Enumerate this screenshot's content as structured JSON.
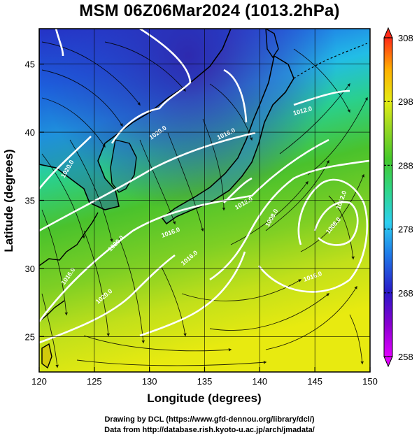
{
  "title": "MSM 06Z06Mar2024 (1013.2hPa)",
  "x_axis": {
    "label": "Longitude (degrees)",
    "range": [
      120,
      150
    ],
    "ticks": [
      "120",
      "125",
      "130",
      "135",
      "140",
      "145",
      "150"
    ]
  },
  "y_axis": {
    "label": "Latitude (degrees)",
    "range": [
      22.4,
      47.6
    ],
    "ticks": [
      "25",
      "30",
      "35",
      "40",
      "45"
    ]
  },
  "colorbar": {
    "range": [
      258,
      308
    ],
    "ticks": [
      "258",
      "268",
      "278",
      "288",
      "298",
      "308"
    ]
  },
  "isobars": {
    "color": "#ffffff",
    "labels": [
      "1020.0",
      "1020.0",
      "1016.0",
      "1016.0",
      "1012.0",
      "1020.0",
      "1016.0",
      "1012.0",
      "1008.0",
      "1020.0",
      "1016.0",
      "1012.0",
      "1008.0",
      "1016.0"
    ]
  },
  "credits": {
    "line1": "Drawing by DCL (https://www.gfd-dennou.org/library/dcl/)",
    "line2": "Data from http://database.rish.kyoto-u.ac.jp/arch/jmadata/"
  }
}
